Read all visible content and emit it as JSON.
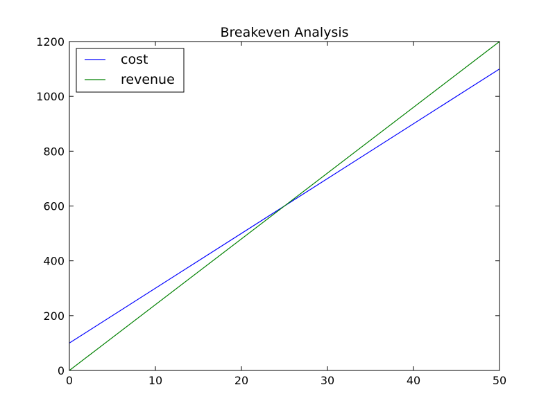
{
  "chart_data": {
    "type": "line",
    "title": "Breakeven Analysis",
    "xlabel": "",
    "ylabel": "",
    "xlim": [
      0,
      50
    ],
    "ylim": [
      0,
      1200
    ],
    "x_ticks": [
      0,
      10,
      20,
      30,
      40,
      50
    ],
    "y_ticks": [
      0,
      200,
      400,
      600,
      800,
      1000,
      1200
    ],
    "x_tick_labels": [
      "0",
      "10",
      "20",
      "30",
      "40",
      "50"
    ],
    "y_tick_labels": [
      "0",
      "200",
      "400",
      "600",
      "800",
      "1000",
      "1200"
    ],
    "grid": false,
    "legend": {
      "position": "upper-left"
    },
    "x": [
      0,
      50
    ],
    "series": [
      {
        "name": "cost",
        "values": [
          100,
          1100
        ],
        "color": "#0000ff"
      },
      {
        "name": "revenue",
        "values": [
          0,
          1200
        ],
        "color": "#008000"
      }
    ]
  }
}
